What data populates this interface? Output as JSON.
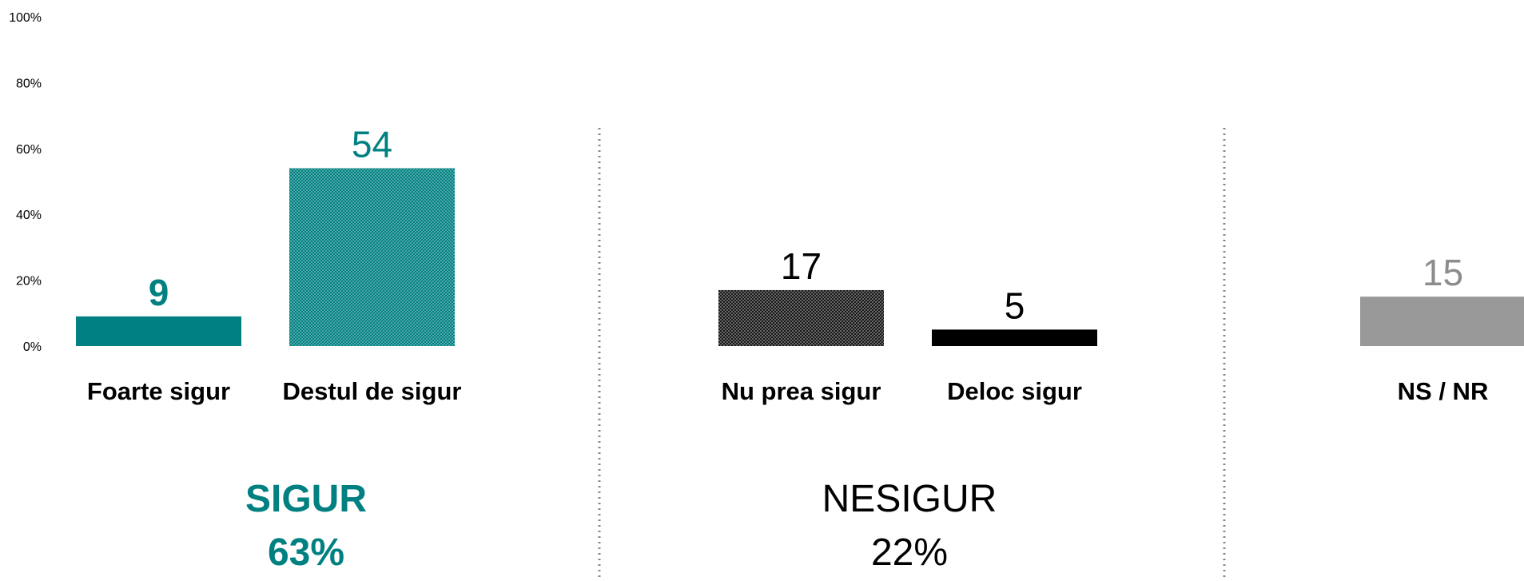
{
  "chart_data": {
    "type": "bar",
    "categories": [
      "Foarte sigur",
      "Destul de sigur",
      "Nu prea sigur",
      "Deloc sigur",
      "NS / NR"
    ],
    "values": [
      9,
      54,
      17,
      5,
      15
    ],
    "colors": [
      "#008080",
      "#008080",
      "#1a1a1a",
      "#000000",
      "#999999"
    ],
    "patterned": [
      false,
      true,
      true,
      false,
      false
    ],
    "label_colors": [
      "#008080",
      "#008080",
      "#000000",
      "#000000",
      "#8c8c8c"
    ],
    "ylim": [
      0,
      100
    ],
    "yticks": [
      {
        "value": 0,
        "label": "0%"
      },
      {
        "value": 20,
        "label": "20%"
      },
      {
        "value": 40,
        "label": "40%"
      },
      {
        "value": 60,
        "label": "60%"
      },
      {
        "value": 80,
        "label": "80%"
      },
      {
        "value": 100,
        "label": "100%"
      }
    ],
    "groups": {
      "labels": [
        "SIGUR",
        "NESIGUR"
      ],
      "values": [
        63,
        22
      ],
      "value_labels": [
        "63%",
        "22%"
      ],
      "colors": [
        "#008080",
        "#000000"
      ]
    }
  }
}
